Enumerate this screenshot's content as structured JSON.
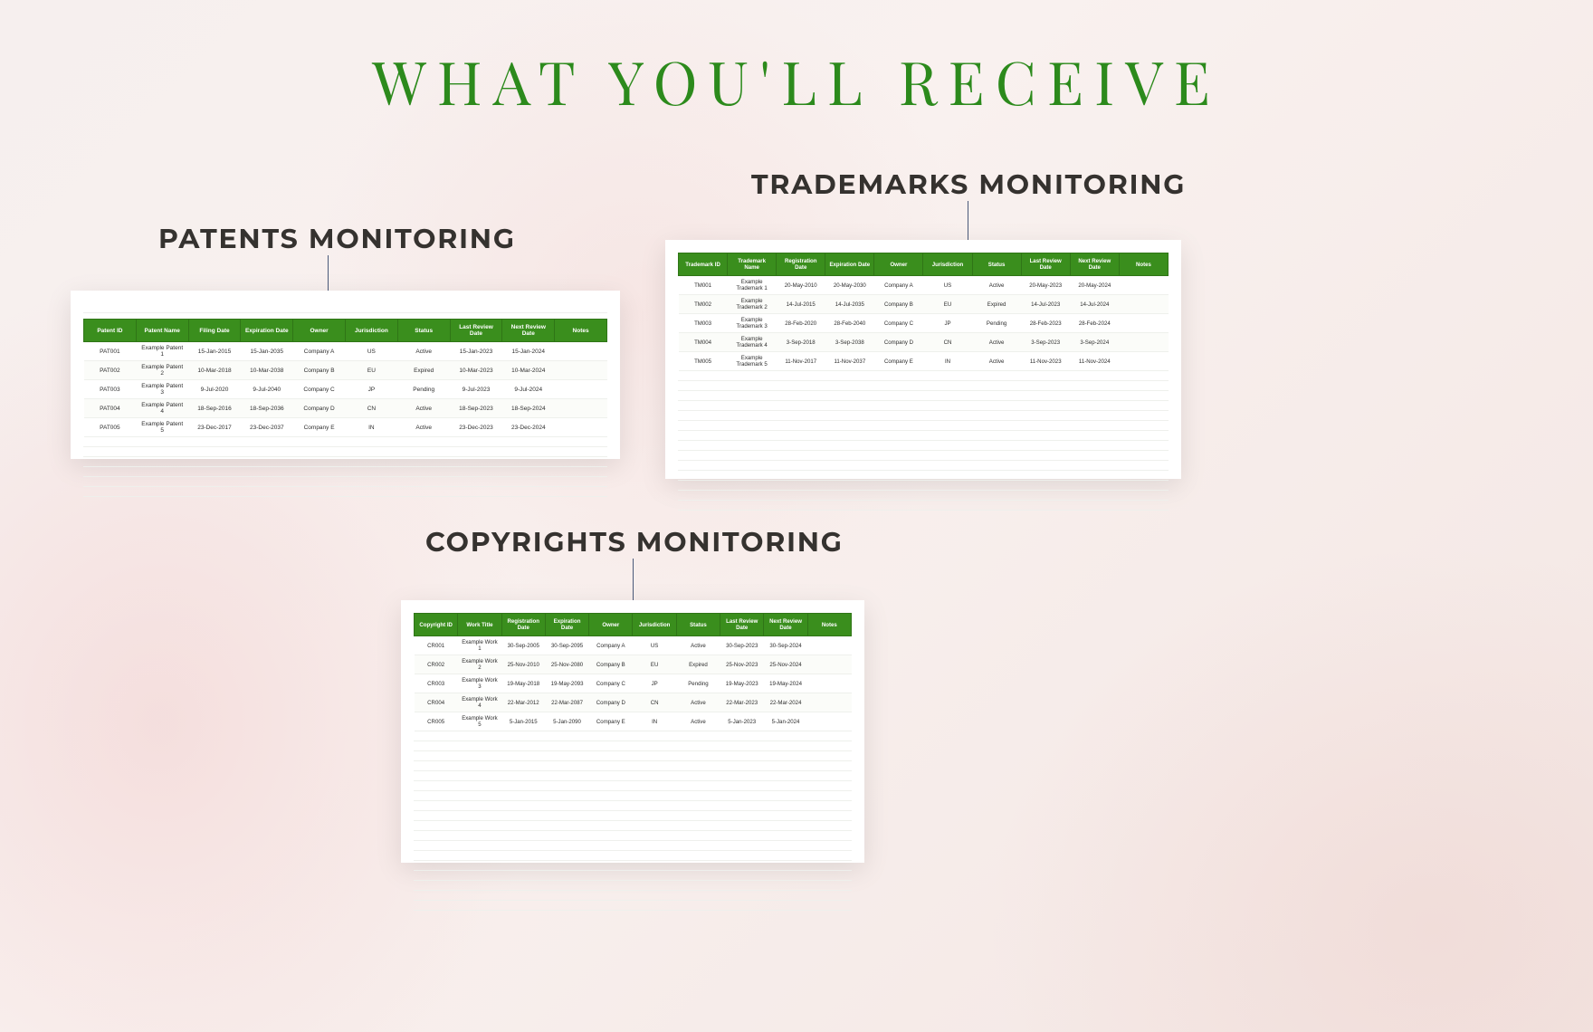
{
  "page": {
    "title": "WHAT YOU'LL RECEIVE",
    "title_color": "#2c8a1c",
    "title_fontsize": 66,
    "background_color": "#f6efee"
  },
  "labels": {
    "patents": "PATENTS MONITORING",
    "trademarks": "TRADEMARKS MONITORING",
    "copyrights": "COPYRIGHTS MONITORING",
    "label_color": "#35322f",
    "label_fontsize": 30
  },
  "pointer": {
    "color": "#4a5a7a",
    "width": 1,
    "dot_diameter": 7
  },
  "tables": {
    "header_bg": "#3a8e1d",
    "header_text_color": "#ffffff",
    "row_border_color": "#eef0ec",
    "patents": {
      "columns": [
        "Patent ID",
        "Patent Name",
        "Filing Date",
        "Expiration Date",
        "Owner",
        "Jurisdiction",
        "Status",
        "Last Review Date",
        "Next Review Date",
        "Notes"
      ],
      "rows": [
        [
          "PAT001",
          "Example Patent 1",
          "15-Jan-2015",
          "15-Jan-2035",
          "Company A",
          "US",
          "Active",
          "15-Jan-2023",
          "15-Jan-2024",
          ""
        ],
        [
          "PAT002",
          "Example Patent 2",
          "10-Mar-2018",
          "10-Mar-2038",
          "Company B",
          "EU",
          "Expired",
          "10-Mar-2023",
          "10-Mar-2024",
          ""
        ],
        [
          "PAT003",
          "Example Patent 3",
          "9-Jul-2020",
          "9-Jul-2040",
          "Company C",
          "JP",
          "Pending",
          "9-Jul-2023",
          "9-Jul-2024",
          ""
        ],
        [
          "PAT004",
          "Example Patent 4",
          "18-Sep-2016",
          "18-Sep-2036",
          "Company D",
          "CN",
          "Active",
          "18-Sep-2023",
          "18-Sep-2024",
          ""
        ],
        [
          "PAT005",
          "Example Patent 5",
          "23-Dec-2017",
          "23-Dec-2037",
          "Company E",
          "IN",
          "Active",
          "23-Dec-2023",
          "23-Dec-2024",
          ""
        ]
      ],
      "empty_rows": 6
    },
    "trademarks": {
      "columns": [
        "Trademark ID",
        "Trademark Name",
        "Registration Date",
        "Expiration Date",
        "Owner",
        "Jurisdiction",
        "Status",
        "Last Review Date",
        "Next Review Date",
        "Notes"
      ],
      "rows": [
        [
          "TM001",
          "Example Trademark 1",
          "20-May-2010",
          "20-May-2030",
          "Company A",
          "US",
          "Active",
          "20-May-2023",
          "20-May-2024",
          ""
        ],
        [
          "TM002",
          "Example Trademark 2",
          "14-Jul-2015",
          "14-Jul-2035",
          "Company B",
          "EU",
          "Expired",
          "14-Jul-2023",
          "14-Jul-2024",
          ""
        ],
        [
          "TM003",
          "Example Trademark 3",
          "28-Feb-2020",
          "28-Feb-2040",
          "Company C",
          "JP",
          "Pending",
          "28-Feb-2023",
          "28-Feb-2024",
          ""
        ],
        [
          "TM004",
          "Example Trademark 4",
          "3-Sep-2018",
          "3-Sep-2038",
          "Company D",
          "CN",
          "Active",
          "3-Sep-2023",
          "3-Sep-2024",
          ""
        ],
        [
          "TM005",
          "Example Trademark 5",
          "11-Nov-2017",
          "11-Nov-2037",
          "Company E",
          "IN",
          "Active",
          "11-Nov-2023",
          "11-Nov-2024",
          ""
        ]
      ],
      "empty_rows": 14
    },
    "copyrights": {
      "columns": [
        "Copyright ID",
        "Work Title",
        "Registration Date",
        "Expiration Date",
        "Owner",
        "Jurisdiction",
        "Status",
        "Last Review Date",
        "Next Review Date",
        "Notes"
      ],
      "rows": [
        [
          "CR001",
          "Example Work 1",
          "30-Sep-2005",
          "30-Sep-2095",
          "Company A",
          "US",
          "Active",
          "30-Sep-2023",
          "30-Sep-2024",
          ""
        ],
        [
          "CR002",
          "Example Work 2",
          "25-Nov-2010",
          "25-Nov-2080",
          "Company B",
          "EU",
          "Expired",
          "25-Nov-2023",
          "25-Nov-2024",
          ""
        ],
        [
          "CR003",
          "Example Work 3",
          "19-May-2018",
          "19-May-2093",
          "Company C",
          "JP",
          "Pending",
          "19-May-2023",
          "19-May-2024",
          ""
        ],
        [
          "CR004",
          "Example Work 4",
          "22-Mar-2012",
          "22-Mar-2087",
          "Company D",
          "CN",
          "Active",
          "22-Mar-2023",
          "22-Mar-2024",
          ""
        ],
        [
          "CR005",
          "Example Work 5",
          "5-Jan-2015",
          "5-Jan-2090",
          "Company E",
          "IN",
          "Active",
          "5-Jan-2023",
          "5-Jan-2024",
          ""
        ]
      ],
      "empty_rows": 18
    }
  }
}
